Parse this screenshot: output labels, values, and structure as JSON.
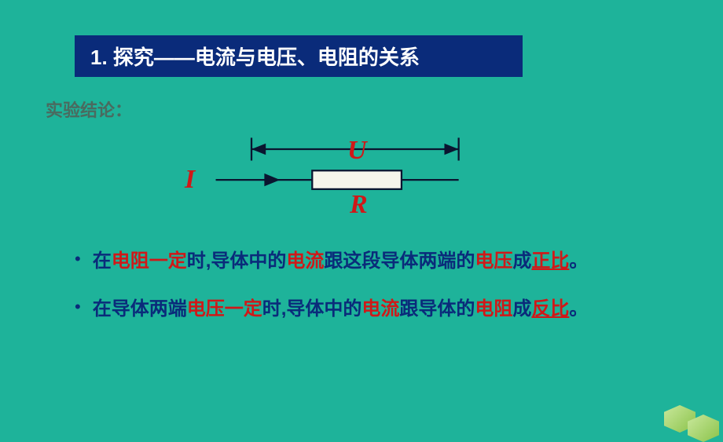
{
  "slide": {
    "background_color": "#1eb39a",
    "title_bar": {
      "text": "1. 探究——电流与电压、电阻的关系",
      "bg_color": "#0a2b7a",
      "text_color": "#ffffff",
      "fontsize": 26
    },
    "subtitle": {
      "text": "实验结论：",
      "color": "#4a6a5f",
      "fontsize": 22
    },
    "diagram": {
      "label_U": "U",
      "label_I": "I",
      "label_R": "R",
      "label_color": "#d01818",
      "label_fontsize": 34,
      "line_color": "#0a1530",
      "line_width": 2,
      "resistor_fill": "#f5f5eb",
      "resistor_stroke": "#0a1530"
    },
    "bullets": [
      {
        "parts": [
          {
            "text": "在",
            "style": "normal"
          },
          {
            "text": "电阻一定",
            "style": "red"
          },
          {
            "text": "时,导体中的",
            "style": "normal"
          },
          {
            "text": "电流",
            "style": "red"
          },
          {
            "text": "跟这段导体两端的",
            "style": "normal"
          },
          {
            "text": "电压",
            "style": "red"
          },
          {
            "text": "成",
            "style": "normal"
          },
          {
            "text": "正比",
            "style": "red-underline"
          },
          {
            "text": "。",
            "style": "normal"
          }
        ]
      },
      {
        "parts": [
          {
            "text": "在导体两端",
            "style": "normal"
          },
          {
            "text": "电压一定",
            "style": "red"
          },
          {
            "text": "时,导体中的",
            "style": "normal"
          },
          {
            "text": "电流",
            "style": "red"
          },
          {
            "text": "跟导体的",
            "style": "normal"
          },
          {
            "text": "电阻",
            "style": "red"
          },
          {
            "text": "成",
            "style": "normal"
          },
          {
            "text": "反比",
            "style": "red-underline"
          },
          {
            "text": "。",
            "style": "normal"
          }
        ]
      }
    ],
    "text_color_normal": "#0a2b7a",
    "text_color_red": "#d01818",
    "bullet_fontsize": 24
  }
}
